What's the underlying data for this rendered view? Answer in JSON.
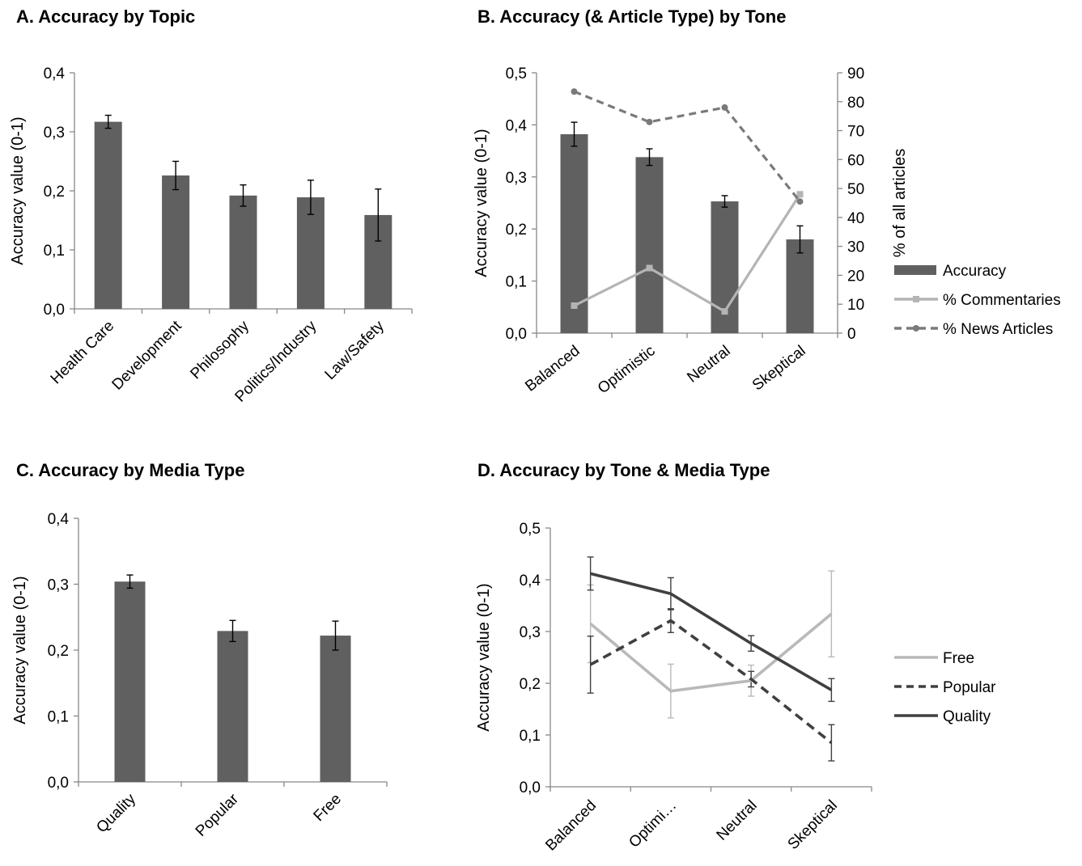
{
  "chart_data": [
    {
      "panel": "A.",
      "type": "bar",
      "title": "Accuracy by Topic",
      "ylabel": "Accuracy value (0-1)",
      "ylim": [
        0,
        0.4
      ],
      "yticks": [
        "0,0",
        "0,1",
        "0,2",
        "0,3",
        "0,4"
      ],
      "categories": [
        "Health Care",
        "Development",
        "Philosophy",
        "Politics/Industry",
        "Law/Safety"
      ],
      "series": [
        {
          "values": [
            0.317,
            0.226,
            0.192,
            0.189,
            0.159
          ],
          "error": [
            0.011,
            0.024,
            0.018,
            0.029,
            0.044
          ]
        }
      ],
      "bar_color": "#606060"
    },
    {
      "panel": "B.",
      "type": "bar",
      "title": "Accuracy (& Article Type) by Tone",
      "ylabel": "Accuracy value (0-1)",
      "y2label": "% of all articles",
      "ylim": [
        0,
        0.5
      ],
      "y2lim": [
        0,
        90
      ],
      "yticks": [
        "0,0",
        "0,1",
        "0,2",
        "0,3",
        "0,4",
        "0,5"
      ],
      "y2ticks": [
        "0",
        "10",
        "20",
        "30",
        "40",
        "50",
        "60",
        "70",
        "80",
        "90"
      ],
      "categories": [
        "Balanced",
        "Optimistic",
        "Neutral",
        "Skeptical"
      ],
      "legend_position": "right",
      "series": [
        {
          "name": "Accuracy",
          "type": "bar",
          "axis": "left",
          "color": "#606060",
          "values": [
            0.382,
            0.338,
            0.253,
            0.18
          ],
          "error": [
            0.023,
            0.016,
            0.011,
            0.026
          ]
        },
        {
          "name": "% Commentaries",
          "type": "line",
          "axis": "right",
          "color": "#b4b4b4",
          "marker": "square",
          "values": [
            9.5,
            22.5,
            7.5,
            48
          ]
        },
        {
          "name": "% News Articles",
          "type": "line",
          "axis": "right",
          "color": "#7a7a7a",
          "dash": true,
          "marker": "circle",
          "values": [
            83.5,
            73,
            78,
            45.5
          ]
        }
      ]
    },
    {
      "panel": "C.",
      "type": "bar",
      "title": "Accuracy by Media Type",
      "ylabel": "Accuracy value (0-1)",
      "ylim": [
        0,
        0.4
      ],
      "yticks": [
        "0,0",
        "0,1",
        "0,2",
        "0,3",
        "0,4"
      ],
      "categories": [
        "Quality",
        "Popular",
        "Free"
      ],
      "series": [
        {
          "values": [
            0.304,
            0.229,
            0.222
          ],
          "error": [
            0.01,
            0.016,
            0.022
          ]
        }
      ],
      "bar_color": "#606060"
    },
    {
      "panel": "D.",
      "type": "line",
      "title": "Accuracy by Tone & Media Type",
      "ylabel": "Accuracy value (0-1)",
      "ylim": [
        0,
        0.5
      ],
      "yticks": [
        "0,0",
        "0,1",
        "0,2",
        "0,3",
        "0,4",
        "0,5"
      ],
      "categories": [
        "Balanced",
        "Optimi…",
        "Neutral",
        "Skeptical"
      ],
      "legend_position": "right",
      "series": [
        {
          "name": "Free",
          "color": "#b9b9b9",
          "dash": false,
          "values": [
            0.315,
            0.185,
            0.205,
            0.334
          ],
          "error": [
            0.075,
            0.052,
            0.03,
            0.083
          ]
        },
        {
          "name": "Popular",
          "color": "#404040",
          "dash": true,
          "values": [
            0.236,
            0.321,
            0.208,
            0.085
          ],
          "error": [
            0.055,
            0.023,
            0.015,
            0.035
          ]
        },
        {
          "name": "Quality",
          "color": "#404040",
          "dash": false,
          "values": [
            0.412,
            0.373,
            0.277,
            0.187
          ],
          "error": [
            0.032,
            0.031,
            0.015,
            0.022
          ]
        }
      ]
    }
  ]
}
